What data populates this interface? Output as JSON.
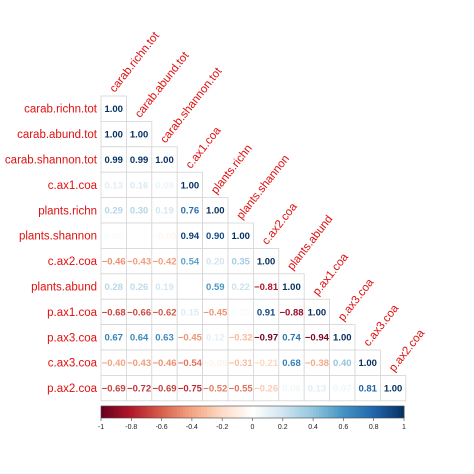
{
  "chart_data": {
    "type": "heatmap",
    "variables": [
      "carab.richn.tot",
      "carab.abund.tot",
      "carab.shannon.tot",
      "c.ax1.coa",
      "plants.richn",
      "plants.shannon",
      "c.ax2.coa",
      "plants.abund",
      "p.ax1.coa",
      "p.ax3.coa",
      "c.ax3.coa",
      "p.ax2.coa"
    ],
    "matrix": [
      [
        1.0
      ],
      [
        1.0,
        1.0
      ],
      [
        0.99,
        0.99,
        1.0
      ],
      [
        0.13,
        0.16,
        0.08,
        1.0
      ],
      [
        0.29,
        0.3,
        0.19,
        0.76,
        1.0
      ],
      [
        0.03,
        0.01,
        -0.05,
        0.94,
        0.9,
        1.0
      ],
      [
        -0.46,
        -0.43,
        -0.42,
        0.54,
        0.2,
        0.35,
        1.0
      ],
      [
        0.28,
        0.26,
        0.19,
        0.0,
        0.59,
        0.22,
        -0.81,
        1.0
      ],
      [
        -0.68,
        -0.66,
        -0.62,
        0.15,
        -0.45,
        0.03,
        0.91,
        -0.88,
        1.0
      ],
      [
        0.67,
        0.64,
        0.63,
        -0.45,
        0.12,
        -0.32,
        -0.97,
        0.74,
        -0.94,
        1.0
      ],
      [
        -0.4,
        -0.43,
        -0.46,
        -0.54,
        -0.06,
        -0.31,
        -0.21,
        0.68,
        -0.38,
        0.4,
        1.0
      ],
      [
        -0.69,
        -0.72,
        -0.69,
        -0.75,
        -0.52,
        -0.55,
        -0.26,
        0.06,
        0.13,
        0.07,
        0.81,
        1.0
      ]
    ],
    "colorbar": {
      "range": [
        -1,
        1
      ],
      "ticks": [
        "-1",
        "-0.8",
        "-0.6",
        "-0.4",
        "-0.2",
        "0",
        "0.2",
        "0.4",
        "0.6",
        "0.8",
        "1"
      ]
    }
  }
}
